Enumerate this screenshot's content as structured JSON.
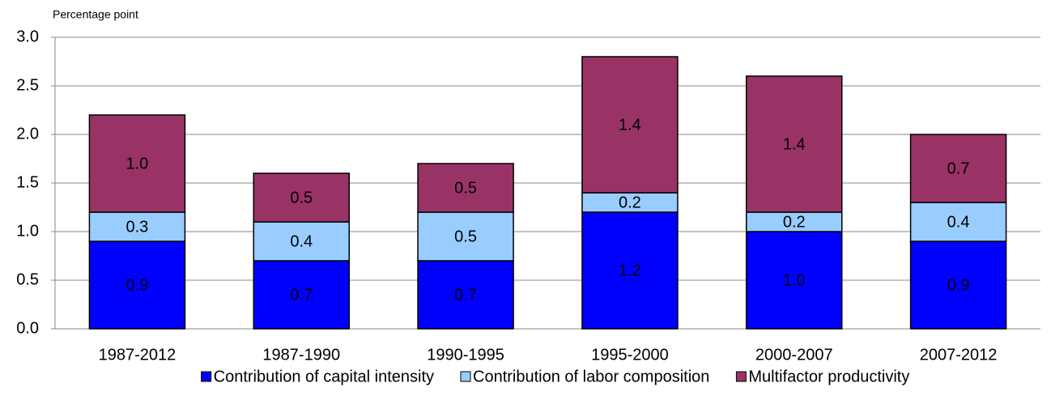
{
  "chart_data": {
    "type": "stacked_bar",
    "y_label": "Percentage point",
    "categories": [
      "1987-2012",
      "1987-1990",
      "1990-1995",
      "1995-2000",
      "2000-2007",
      "2007-2012"
    ],
    "series": [
      {
        "name": "Contribution of capital intensity",
        "color": "#0000ff",
        "label_color": "#ffffff",
        "values": [
          0.9,
          0.7,
          0.7,
          1.2,
          1,
          0.9
        ],
        "value_labels": [
          "0.9",
          "0.7",
          "0.7",
          "1.2",
          "1.0",
          "0.9"
        ]
      },
      {
        "name": "Contribution of labor composition",
        "color": "#99ccff",
        "label_color": "#000000",
        "values": [
          0.3,
          0.4,
          0.5,
          0.2,
          0.2,
          0.4
        ],
        "value_labels": [
          "0.3",
          "0.4",
          "0.5",
          "0.2",
          "0.2",
          "0.4"
        ]
      },
      {
        "name": "Multifactor productivity",
        "color": "#993366",
        "label_color": "#ffffff",
        "values": [
          1,
          0.5,
          0.5,
          1.4,
          1.4,
          0.7
        ],
        "value_labels": [
          "1.0",
          "0.5",
          "0.5",
          "1.4",
          "1.4",
          "0.7"
        ]
      }
    ],
    "ylim": [
      0,
      3
    ],
    "yticks": [
      {
        "value": 0,
        "label": "0.0"
      },
      0.5,
      {
        "value": 1,
        "label": "1.0"
      },
      1.5,
      {
        "value": 2,
        "label": "2.0"
      },
      2.5,
      {
        "value": 3,
        "label": "3.0"
      }
    ],
    "grid": true,
    "legend": "bottom"
  }
}
